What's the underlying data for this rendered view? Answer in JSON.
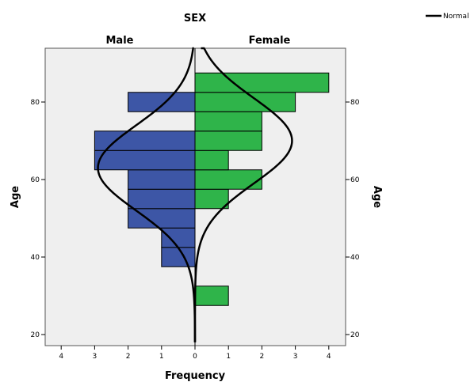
{
  "chart_data": {
    "type": "bar",
    "title": "SEX",
    "panels": [
      "Male",
      "Female"
    ],
    "xlabel": "Frequency",
    "ylabel": "Age",
    "ylabel_right": "Age",
    "x_ticks": [
      4,
      3,
      2,
      1,
      0,
      1,
      2,
      3,
      4
    ],
    "y_ticks": [
      20,
      40,
      60,
      80
    ],
    "ylim": [
      18,
      95
    ],
    "xlim": [
      -4.3,
      4.5
    ],
    "bin_width": 5,
    "grid": false,
    "legend": {
      "position": "top-right",
      "label": "Normal"
    },
    "series": [
      {
        "name": "Male",
        "color": "#3d56a6",
        "bins": [
          {
            "bin_start": 37.5,
            "count": 1
          },
          {
            "bin_start": 42.5,
            "count": 1
          },
          {
            "bin_start": 47.5,
            "count": 2
          },
          {
            "bin_start": 52.5,
            "count": 2
          },
          {
            "bin_start": 57.5,
            "count": 2
          },
          {
            "bin_start": 62.5,
            "count": 3
          },
          {
            "bin_start": 67.5,
            "count": 3
          },
          {
            "bin_start": 77.5,
            "count": 2
          }
        ],
        "normal_mean": 63,
        "normal_sd": 11
      },
      {
        "name": "Female",
        "color": "#2fb44a",
        "bins": [
          {
            "bin_start": 27.5,
            "count": 1
          },
          {
            "bin_start": 52.5,
            "count": 1
          },
          {
            "bin_start": 57.5,
            "count": 2
          },
          {
            "bin_start": 62.5,
            "count": 1
          },
          {
            "bin_start": 67.5,
            "count": 2
          },
          {
            "bin_start": 72.5,
            "count": 2
          },
          {
            "bin_start": 77.5,
            "count": 3
          },
          {
            "bin_start": 82.5,
            "count": 4
          }
        ],
        "normal_mean": 70,
        "normal_sd": 11
      }
    ]
  }
}
